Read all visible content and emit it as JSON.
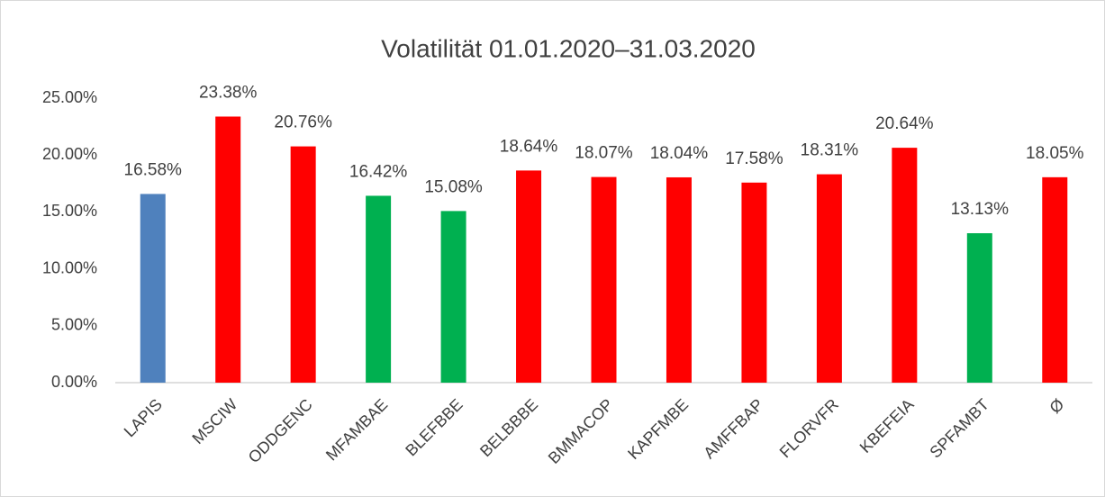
{
  "chart_data": {
    "type": "bar",
    "title": "Volatilität 01.01.2020–31.03.2020",
    "categories": [
      "LAPIS",
      "MSCIW",
      "ODDGENC",
      "MFAMBAE",
      "BLEFBBE",
      "BELBBBE",
      "BMMACOP",
      "KAPFMBE",
      "AMFFBAP",
      "FLORVFR",
      "KBEFEIA",
      "SPFAMBT",
      "Ø"
    ],
    "values": [
      16.58,
      23.38,
      20.76,
      16.42,
      15.08,
      18.64,
      18.07,
      18.04,
      17.58,
      18.31,
      20.64,
      13.13,
      18.05
    ],
    "value_labels": [
      "16.58%",
      "23.38%",
      "20.76%",
      "16.42%",
      "15.08%",
      "18.64%",
      "18.07%",
      "18.04%",
      "17.58%",
      "18.31%",
      "20.64%",
      "13.13%",
      "18.05%"
    ],
    "colors": [
      "#4f81bd",
      "#ff0000",
      "#ff0000",
      "#00b050",
      "#00b050",
      "#ff0000",
      "#ff0000",
      "#ff0000",
      "#ff0000",
      "#ff0000",
      "#ff0000",
      "#00b050",
      "#ff0000"
    ],
    "ylim": [
      0,
      25
    ],
    "yticks": [
      {
        "value": 0,
        "label": "0.00%"
      },
      {
        "value": 5,
        "label": "5.00%"
      },
      {
        "value": 10,
        "label": "10.00%"
      },
      {
        "value": 15,
        "label": "15.00%"
      },
      {
        "value": 20,
        "label": "20.00%"
      },
      {
        "value": 25,
        "label": "25.00%"
      }
    ],
    "grid": false
  }
}
